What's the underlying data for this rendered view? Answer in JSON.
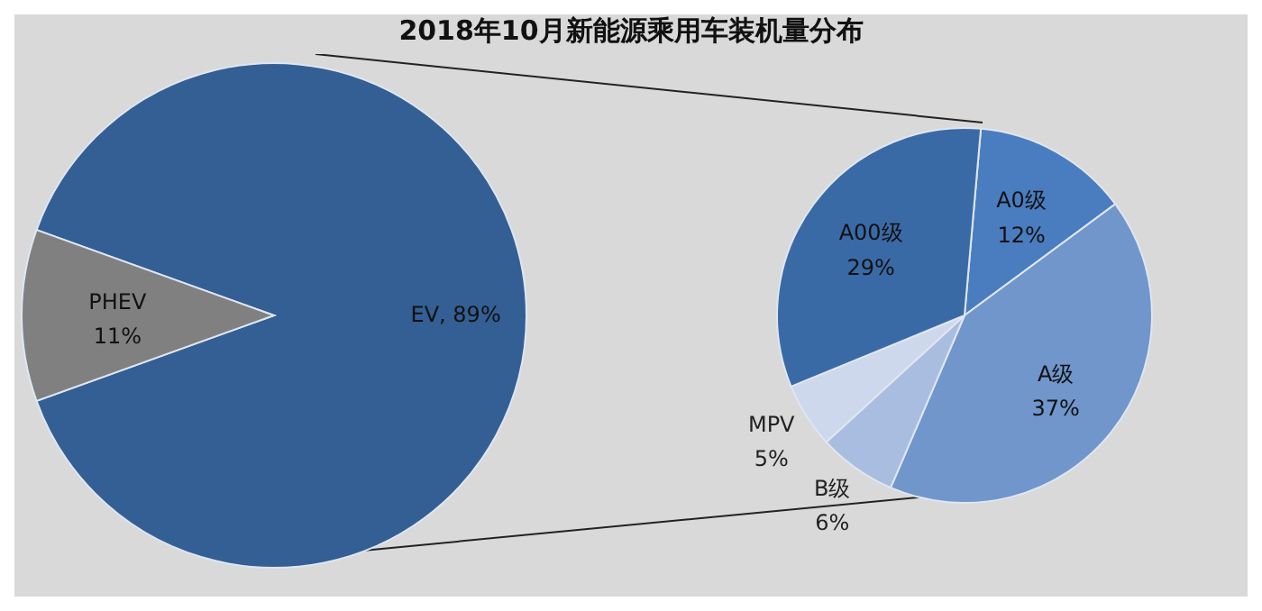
{
  "chart_data": [
    {
      "type": "pie",
      "title": "2018年10月新能源乘用车装机量分布",
      "categories": [
        "EV",
        "PHEV"
      ],
      "values": [
        89,
        11
      ],
      "value_labels": [
        "89%",
        "11%"
      ],
      "colors": [
        "#335f94",
        "#808080"
      ],
      "data_labels": true
    },
    {
      "type": "pie",
      "categories": [
        "A0级",
        "A级",
        "B级",
        "MPV",
        "A00级"
      ],
      "values": [
        12,
        37,
        6,
        5,
        29
      ],
      "value_labels": [
        "12%",
        "37%",
        "6%",
        "5%",
        "29%"
      ],
      "colors": [
        "#4a7dbf",
        "#7096cc",
        "#a9bde0",
        "#cdd8ec",
        "#3a6aa6"
      ],
      "data_labels": true
    }
  ]
}
